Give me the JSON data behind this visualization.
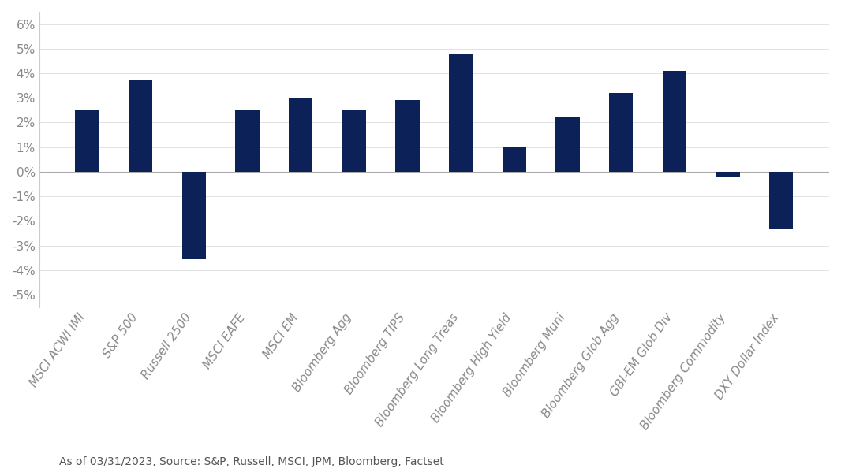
{
  "categories": [
    "MSCI ACWI IMI",
    "S&P 500",
    "Russell 2500",
    "MSCI EAFE",
    "MSCI EM",
    "Bloomberg Agg",
    "Bloomberg TIPS",
    "Bloomberg Long Treas",
    "Bloomberg High Yield",
    "Bloomberg Muni",
    "Bloomberg Glob Agg",
    "GBI-EM Glob Div",
    "Bloomberg Commodity",
    "DXY Dollar Index"
  ],
  "values": [
    2.5,
    3.7,
    -3.55,
    2.5,
    3.0,
    2.5,
    2.9,
    4.8,
    1.0,
    2.2,
    3.2,
    4.1,
    -0.2,
    -2.3
  ],
  "bar_color": "#0d2159",
  "background_color": "#ffffff",
  "ylim": [
    -5.5,
    6.5
  ],
  "yticks": [
    -5,
    -4,
    -3,
    -2,
    -1,
    0,
    1,
    2,
    3,
    4,
    5,
    6
  ],
  "ytick_labels": [
    "-5%",
    "-4%",
    "-3%",
    "-2%",
    "-1%",
    "0%",
    "1%",
    "2%",
    "3%",
    "4%",
    "5%",
    "6%"
  ],
  "footnote": "As of 03/31/2023, Source: S&P, Russell, MSCI, JPM, Bloomberg, Factset",
  "footnote_fontsize": 10,
  "tick_label_fontsize": 11,
  "xlabel_rotation": 55,
  "bar_width": 0.45
}
